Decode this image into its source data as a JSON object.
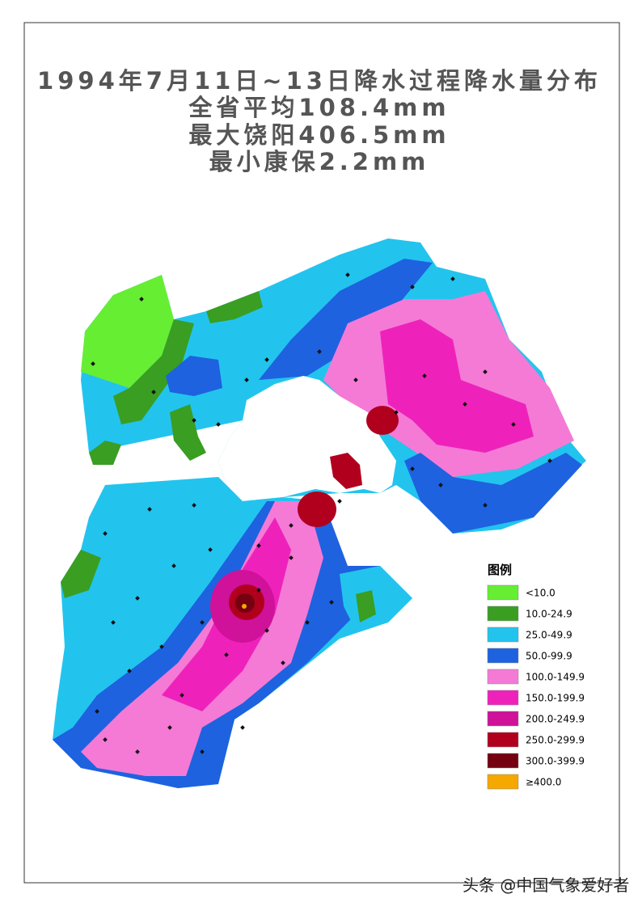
{
  "title": {
    "lines": [
      "1994年7月11日~13日降水过程降水量分布",
      "全省平均108.4mm",
      "最大饶阳406.5mm",
      "最小康保2.2mm"
    ]
  },
  "legend": {
    "title": "图例",
    "items": [
      {
        "label": "<10.0",
        "color": "#66ee33"
      },
      {
        "label": "10.0-24.9",
        "color": "#3a9e22"
      },
      {
        "label": "25.0-49.9",
        "color": "#22c4ee"
      },
      {
        "label": "50.0-99.9",
        "color": "#1e62e0"
      },
      {
        "label": "100.0-149.9",
        "color": "#f47ad6"
      },
      {
        "label": "150.0-199.9",
        "color": "#ee22bb"
      },
      {
        "label": "200.0-249.9",
        "color": "#d0119a"
      },
      {
        "label": "250.0-299.9",
        "color": "#b0001e"
      },
      {
        "label": "300.0-399.9",
        "color": "#740010"
      },
      {
        "label": "≥400.0",
        "color": "#f5a800"
      }
    ]
  },
  "watermark": "头条 @中国气象爱好者"
}
